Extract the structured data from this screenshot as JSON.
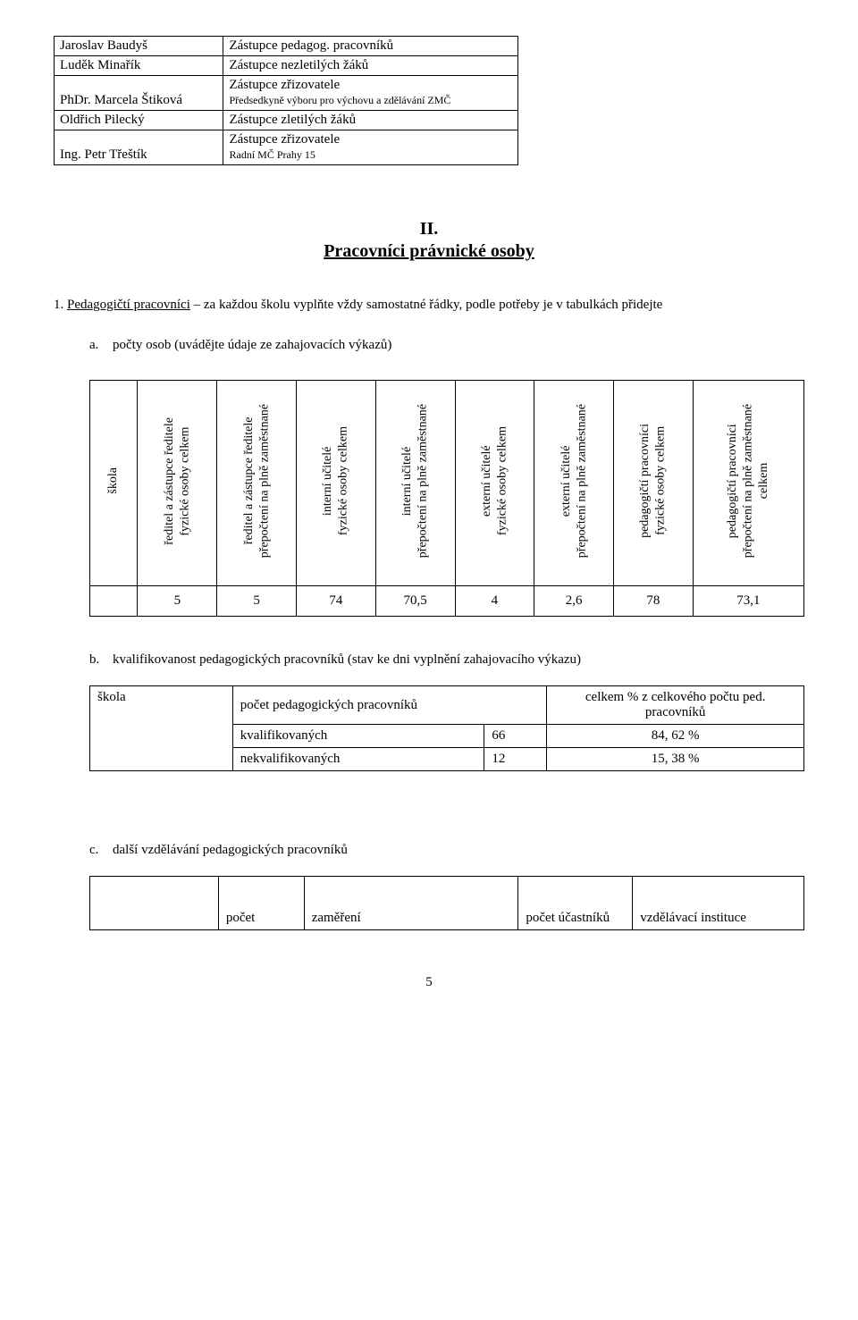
{
  "table1": {
    "rows": [
      {
        "name": "Jaroslav Baudyš",
        "role": "Zástupce pedagog. pracovníků",
        "sub": ""
      },
      {
        "name": "Luděk Minařík",
        "role": "Zástupce nezletilých žáků",
        "sub": ""
      },
      {
        "name": "PhDr. Marcela Štiková",
        "role": "Zástupce zřizovatele",
        "sub": "Předsedkyně výboru pro výchovu a zdělávání ZMČ"
      },
      {
        "name": "Oldřich Pilecký",
        "role": "Zástupce zletilých žáků",
        "sub": ""
      },
      {
        "name": "Ing. Petr Třeštík",
        "role": "Zástupce zřizovatele",
        "sub": "Radní MČ Prahy 15"
      }
    ]
  },
  "sectionNumber": "II.",
  "sectionTitle": "Pracovníci právnické osoby",
  "item1": {
    "number": "1.",
    "lead": "Pedagogičtí pracovníci",
    "rest": " – za každou školu vyplňte vždy samostatné řádky, podle potřeby je v tabulkách přidejte"
  },
  "subA": {
    "marker": "a.",
    "lead": "počty osob",
    "rest": " (uvádějte údaje ze zahajovacích výkazů)"
  },
  "countsTable": {
    "headers": [
      "škola",
      "ředitel a zástupce ředitele\nfyzické osoby celkem",
      "ředitel a zástupce ředitele\npřepočtení na plně zaměstnané",
      "interní učitelé\nfyzické osoby celkem",
      "interní učitelé\npřepočtení na plně zaměstnané",
      "externí učitelé\nfyzické osoby celkem",
      "externí učitelé\npřepočtení na plně zaměstnané",
      "pedagogičtí pracovníci\nfyzické osoby celkem",
      "pedagogičtí pracovníci\npřepočtení na plně zaměstnané\ncelkem"
    ],
    "row": [
      "",
      "5",
      "5",
      "74",
      "70,5",
      "4",
      "2,6",
      "78",
      "73,1"
    ]
  },
  "subB": {
    "marker": "b.",
    "lead": "kvalifikovanost pedagogických pracovníků",
    "rest": " (stav ke dni vyplnění zahajovacího výkazu)"
  },
  "qualTable": {
    "h_skola": "škola",
    "h_pocet": "počet pedagogických pracovníků",
    "h_celkem": "celkem % z celkového počtu ped. pracovníků",
    "r1_label": "kvalifikovaných",
    "r1_n": "66",
    "r1_pct": "84, 62 %",
    "r2_label": "nekvalifikovaných",
    "r2_n": "12",
    "r2_pct": "15, 38 %"
  },
  "subC": {
    "marker": "c.",
    "lead": "další vzdělávání pedagogických pracovníků"
  },
  "bottomTable": {
    "c1": "počet",
    "c2": "zaměření",
    "c3": "počet účastníků",
    "c4": "vzdělávací instituce"
  },
  "pageNumber": "5"
}
